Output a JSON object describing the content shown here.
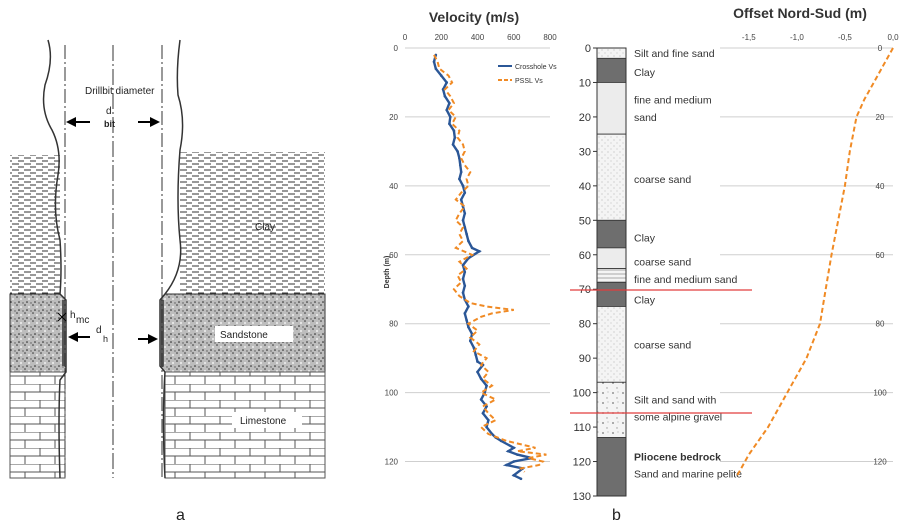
{
  "panel_a": {
    "caption": "a",
    "labels": {
      "drillbit": "Drillbit diameter",
      "d": "d",
      "bit": "bit",
      "clay": "Clay",
      "hmc": "h",
      "hmc_sub": "mc",
      "dh": "d",
      "dh_sub": "h",
      "sandstone": "Sandstone",
      "limestone": "Limestone"
    }
  },
  "panel_b": {
    "caption": "b",
    "velocity": {
      "title": "Velocity (m/s)",
      "ylabel": "Depth (m)"
    },
    "lithology": {
      "depth_ticks": [
        0,
        10,
        20,
        30,
        40,
        50,
        60,
        70,
        80,
        90,
        100,
        110,
        120,
        130
      ],
      "layers": [
        {
          "top": 0,
          "bottom": 3,
          "fill": "dot"
        },
        {
          "top": 3,
          "bottom": 10,
          "fill": "dark"
        },
        {
          "top": 10,
          "bottom": 25,
          "fill": "light"
        },
        {
          "top": 25,
          "bottom": 50,
          "fill": "dot"
        },
        {
          "top": 50,
          "bottom": 58,
          "fill": "dark"
        },
        {
          "top": 58,
          "bottom": 64,
          "fill": "light"
        },
        {
          "top": 64,
          "bottom": 68,
          "fill": "lines"
        },
        {
          "top": 68,
          "bottom": 75,
          "fill": "dark"
        },
        {
          "top": 75,
          "bottom": 97,
          "fill": "dot"
        },
        {
          "top": 97,
          "bottom": 113,
          "fill": "gravel"
        },
        {
          "top": 113,
          "bottom": 130,
          "fill": "dark"
        }
      ],
      "labels": [
        {
          "text": "Silt and fine sand",
          "depth": 1.5,
          "bold": false
        },
        {
          "text": "Clay",
          "depth": 7,
          "bold": false
        },
        {
          "text": "fine and medium",
          "depth": 15,
          "bold": false
        },
        {
          "text": "sand",
          "depth": 20,
          "bold": false
        },
        {
          "text": "coarse sand",
          "depth": 38,
          "bold": false
        },
        {
          "text": "Clay",
          "depth": 55,
          "bold": false
        },
        {
          "text": "coarse sand",
          "depth": 62,
          "bold": false
        },
        {
          "text": "fine and medium sand",
          "depth": 67,
          "bold": false
        },
        {
          "text": "Clay",
          "depth": 73,
          "bold": false
        },
        {
          "text": "coarse sand",
          "depth": 86,
          "bold": false
        },
        {
          "text": "Silt and sand with",
          "depth": 102,
          "bold": false
        },
        {
          "text": "some alpine gravel",
          "depth": 107,
          "bold": false
        },
        {
          "text": "Pliocene bedrock",
          "depth": 118.5,
          "bold": true
        },
        {
          "text": "Sand and marine pelite",
          "depth": 123.5,
          "bold": false
        }
      ]
    },
    "offset": {
      "title": "Offset Nord-Sud (m)"
    }
  },
  "chart_data": [
    {
      "type": "line",
      "title": "Velocity (m/s)",
      "xlabel": "",
      "ylabel": "Depth (m)",
      "xlim": [
        0,
        800
      ],
      "ylim": [
        0,
        130
      ],
      "x_ticks": [
        0,
        200,
        400,
        600,
        800
      ],
      "y_ticks": [
        0,
        20,
        40,
        60,
        80,
        100,
        120
      ],
      "grid": true,
      "legend": "top-right",
      "series": [
        {
          "name": "Crosshole Vs",
          "color": "#2b5797",
          "points": [
            [
              170,
              2
            ],
            [
              160,
              4
            ],
            [
              170,
              6
            ],
            [
              200,
              8
            ],
            [
              230,
              10
            ],
            [
              210,
              12
            ],
            [
              220,
              14
            ],
            [
              245,
              16
            ],
            [
              230,
              18
            ],
            [
              250,
              20
            ],
            [
              245,
              22
            ],
            [
              270,
              24
            ],
            [
              275,
              26
            ],
            [
              265,
              28
            ],
            [
              290,
              30
            ],
            [
              300,
              32
            ],
            [
              305,
              34
            ],
            [
              310,
              36
            ],
            [
              300,
              38
            ],
            [
              320,
              40
            ],
            [
              330,
              42
            ],
            [
              310,
              44
            ],
            [
              320,
              46
            ],
            [
              330,
              48
            ],
            [
              320,
              50
            ],
            [
              330,
              52
            ],
            [
              340,
              54
            ],
            [
              350,
              56
            ],
            [
              370,
              58
            ],
            [
              410,
              59
            ],
            [
              350,
              61
            ],
            [
              320,
              63
            ],
            [
              330,
              65
            ],
            [
              320,
              67
            ],
            [
              330,
              69
            ],
            [
              320,
              71
            ],
            [
              330,
              73
            ],
            [
              350,
              75
            ],
            [
              330,
              77
            ],
            [
              340,
              79
            ],
            [
              350,
              81
            ],
            [
              370,
              83
            ],
            [
              360,
              85
            ],
            [
              380,
              87
            ],
            [
              390,
              89
            ],
            [
              400,
              91
            ],
            [
              430,
              92
            ],
            [
              400,
              94
            ],
            [
              420,
              96
            ],
            [
              450,
              98
            ],
            [
              440,
              100
            ],
            [
              420,
              102
            ],
            [
              450,
              104
            ],
            [
              430,
              106
            ],
            [
              460,
              108
            ],
            [
              450,
              110
            ],
            [
              480,
              112
            ],
            [
              500,
              113
            ],
            [
              530,
              114
            ],
            [
              600,
              116
            ],
            [
              570,
              117
            ],
            [
              620,
              118
            ],
            [
              700,
              119
            ],
            [
              600,
              120
            ],
            [
              560,
              121
            ],
            [
              650,
              122
            ],
            [
              600,
              124
            ],
            [
              640,
              125
            ]
          ]
        },
        {
          "name": "PSSL Vs",
          "color": "#f08a24",
          "points": [
            [
              160,
              2
            ],
            [
              180,
              4
            ],
            [
              190,
              6
            ],
            [
              240,
              8
            ],
            [
              260,
              10
            ],
            [
              220,
              12
            ],
            [
              250,
              14
            ],
            [
              270,
              16
            ],
            [
              240,
              18
            ],
            [
              280,
              20
            ],
            [
              260,
              22
            ],
            [
              300,
              24
            ],
            [
              290,
              26
            ],
            [
              320,
              28
            ],
            [
              330,
              30
            ],
            [
              310,
              32
            ],
            [
              330,
              34
            ],
            [
              360,
              36
            ],
            [
              340,
              38
            ],
            [
              350,
              40
            ],
            [
              310,
              42
            ],
            [
              280,
              44
            ],
            [
              330,
              46
            ],
            [
              300,
              48
            ],
            [
              280,
              50
            ],
            [
              320,
              52
            ],
            [
              300,
              54
            ],
            [
              320,
              56
            ],
            [
              280,
              58
            ],
            [
              370,
              60
            ],
            [
              300,
              62
            ],
            [
              340,
              64
            ],
            [
              290,
              66
            ],
            [
              310,
              68
            ],
            [
              270,
              70
            ],
            [
              300,
              72
            ],
            [
              360,
              74
            ],
            [
              450,
              75
            ],
            [
              600,
              76
            ],
            [
              480,
              77
            ],
            [
              420,
              78
            ],
            [
              350,
              80
            ],
            [
              400,
              82
            ],
            [
              360,
              84
            ],
            [
              410,
              86
            ],
            [
              380,
              88
            ],
            [
              450,
              90
            ],
            [
              420,
              92
            ],
            [
              460,
              94
            ],
            [
              430,
              96
            ],
            [
              480,
              98
            ],
            [
              420,
              100
            ],
            [
              500,
              102
            ],
            [
              430,
              104
            ],
            [
              460,
              106
            ],
            [
              500,
              108
            ],
            [
              420,
              110
            ],
            [
              460,
              112
            ],
            [
              560,
              114
            ],
            [
              720,
              116
            ],
            [
              620,
              117
            ],
            [
              780,
              118
            ],
            [
              680,
              119
            ],
            [
              760,
              120
            ],
            [
              740,
              121
            ],
            [
              640,
              122
            ],
            [
              660,
              123
            ]
          ]
        }
      ]
    },
    {
      "type": "line",
      "title": "Offset Nord-Sud (m)",
      "xlabel": "",
      "ylabel": "",
      "xlim": [
        -1.8,
        0.0
      ],
      "ylim": [
        0,
        130
      ],
      "x_ticks": [
        -1.5,
        -1.0,
        -0.5,
        0.0
      ],
      "x_tick_labels": [
        "-1,5",
        "-1,0",
        "-0,5",
        "0,0"
      ],
      "y_ticks": [
        0,
        20,
        40,
        60,
        80,
        100,
        120
      ],
      "grid": true,
      "series": [
        {
          "name": "",
          "color": "#f08a24",
          "points": [
            [
              0,
              0
            ],
            [
              -0.1,
              5
            ],
            [
              -0.2,
              10
            ],
            [
              -0.3,
              15
            ],
            [
              -0.38,
              20
            ],
            [
              -0.45,
              30
            ],
            [
              -0.5,
              40
            ],
            [
              -0.57,
              50
            ],
            [
              -0.64,
              60
            ],
            [
              -0.7,
              70
            ],
            [
              -0.76,
              80
            ],
            [
              -0.9,
              90
            ],
            [
              -1.1,
              100
            ],
            [
              -1.3,
              110
            ],
            [
              -1.5,
              118
            ],
            [
              -1.62,
              124
            ]
          ]
        }
      ]
    }
  ]
}
